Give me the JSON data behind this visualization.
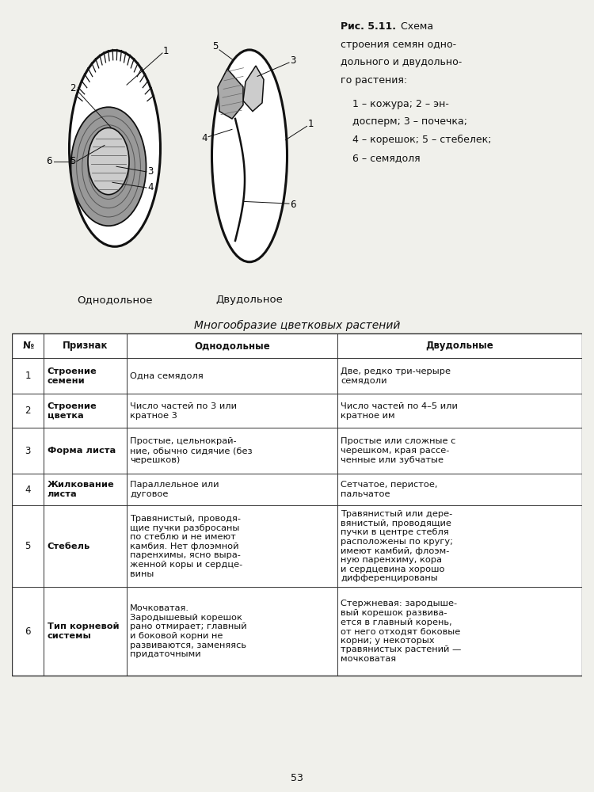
{
  "label_mono": "Однодольное",
  "label_di": "Двудольное",
  "table_title": "Многообразие цветковых растений",
  "col_headers": [
    "№",
    "Признак",
    "Однодольные",
    "Двудольные"
  ],
  "rows": [
    [
      "1",
      "Строение\nсемени",
      "Одна семядоля",
      "Две, редко три-черыре\nсемядоли"
    ],
    [
      "2",
      "Строение\nцветка",
      "Число частей по 3 или\nкратное 3",
      "Число частей по 4–5 или\nкратное им"
    ],
    [
      "3",
      "Форма листа",
      "Простые, цельнокрай-\nние, обычно сидячие (без\nчерешков)",
      "Простые или сложные с\nчерешком, края рассе-\nченные или зубчатые"
    ],
    [
      "4",
      "Жилкование\nлиста",
      "Параллельное или\nдуговое",
      "Сетчатое, перистое,\nпальчатое"
    ],
    [
      "5",
      "Стебель",
      "Травянистый, проводя-\nщие пучки разбросаны\nпо стеблю и не имеют\nкамбия. Нет флоэмной\nпаренхимы, ясно выра-\nженной коры и сердце-\nвины",
      "Травянистый или дере-\nвянистый, проводящие\nпучки в центре стебля\nрасположены по кругу;\nимеют камбий, флоэм-\nную паренхиму, кора\nи сердцевина хорошо\nдифференцированы"
    ],
    [
      "6",
      "Тип корневой\nсистемы",
      "Мочковатая.\nЗародышевый корешок\nрано отмирает; главный\nи боковой корни не\nразвиваются, заменяясь\nпридаточными",
      "Стержневая: зародыше-\nвый корешок развива-\nется в главный корень,\nот него отходят боковые\nкорни; у некоторых\nтравянистых растений —\nмочковатая"
    ]
  ],
  "page_number": "53",
  "bg_color": "#f0f0eb",
  "text_color": "#111111"
}
